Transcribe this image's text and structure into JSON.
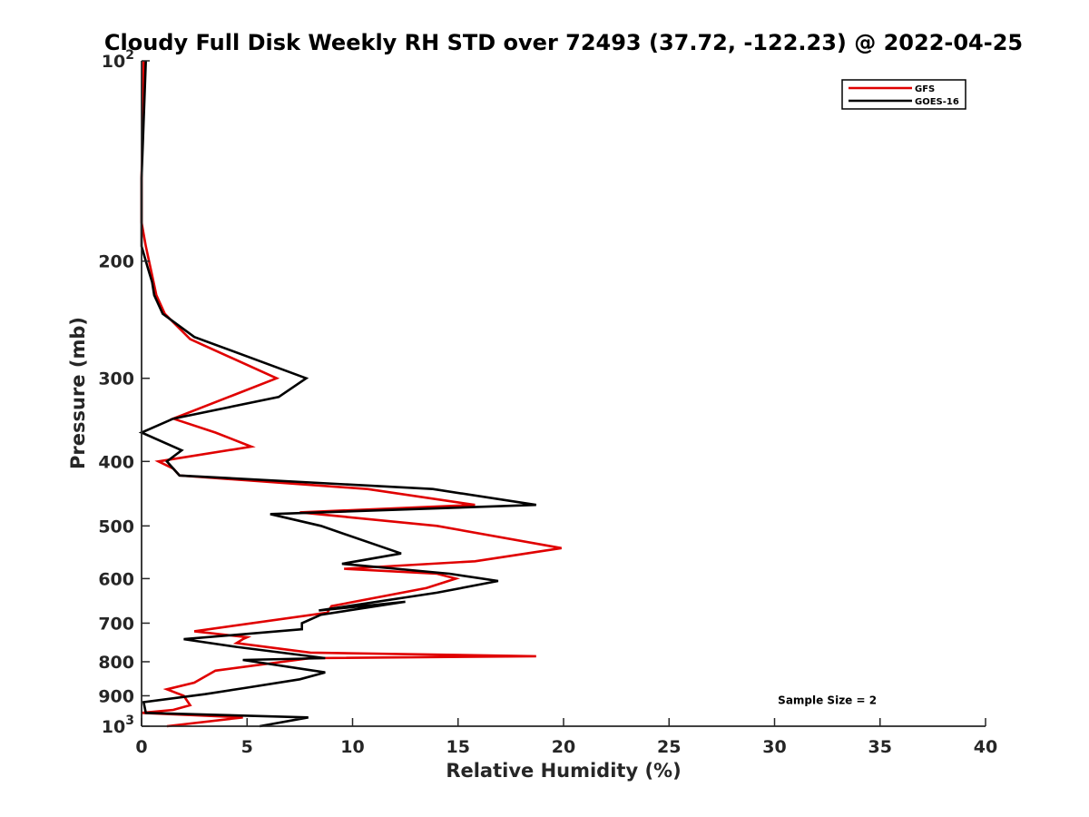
{
  "chart_data": {
    "type": "line",
    "title": "Cloudy Full Disk Weekly RH STD over 72493 (37.72, -122.23) @ 2022-04-25",
    "xlabel": "Relative Humidity (%)",
    "ylabel": "Pressure (mb)",
    "xlim": [
      0,
      40
    ],
    "ylim": [
      100,
      1000
    ],
    "y_scale": "log",
    "y_reversed": true,
    "x_ticks": [
      0,
      5,
      10,
      15,
      20,
      25,
      30,
      35,
      40
    ],
    "y_ticks": [
      100,
      200,
      300,
      400,
      500,
      600,
      700,
      800,
      900,
      1000
    ],
    "y_tick_labels": [
      {
        "base": "10",
        "exp": "2"
      },
      {
        "text": "200"
      },
      {
        "text": "300"
      },
      {
        "text": "400"
      },
      {
        "text": "500"
      },
      {
        "text": "600"
      },
      {
        "text": "700"
      },
      {
        "text": "800"
      },
      {
        "text": "900"
      },
      {
        "base": "10",
        "exp": "3"
      }
    ],
    "legend_position": "top-right",
    "series": [
      {
        "name": "GFS",
        "color": "#e00000",
        "points": [
          [
            0.1,
            100
          ],
          [
            0.0,
            150
          ],
          [
            0.0,
            175
          ],
          [
            0.2,
            190
          ],
          [
            0.5,
            210
          ],
          [
            0.7,
            225
          ],
          [
            1.1,
            240
          ],
          [
            2.3,
            262
          ],
          [
            6.4,
            300
          ],
          [
            1.5,
            345
          ],
          [
            3.5,
            362
          ],
          [
            5.2,
            380
          ],
          [
            0.8,
            400
          ],
          [
            1.5,
            410
          ],
          [
            1.8,
            420
          ],
          [
            10.7,
            440
          ],
          [
            15.8,
            465
          ],
          [
            7.5,
            477
          ],
          [
            14.0,
            500
          ],
          [
            19.9,
            540
          ],
          [
            15.8,
            565
          ],
          [
            9.6,
            580
          ],
          [
            14.0,
            590
          ],
          [
            14.9,
            600
          ],
          [
            13.5,
            620
          ],
          [
            9.0,
            660
          ],
          [
            8.8,
            675
          ],
          [
            2.5,
            720
          ],
          [
            5.0,
            735
          ],
          [
            4.8,
            740
          ],
          [
            4.5,
            750
          ],
          [
            8.0,
            775
          ],
          [
            18.7,
            785
          ],
          [
            8.0,
            790
          ],
          [
            3.5,
            825
          ],
          [
            2.5,
            860
          ],
          [
            1.2,
            880
          ],
          [
            2.0,
            900
          ],
          [
            2.3,
            930
          ],
          [
            1.5,
            945
          ],
          [
            0.0,
            955
          ],
          [
            4.8,
            970
          ],
          [
            1.2,
            1000
          ]
        ]
      },
      {
        "name": "GOES-16",
        "color": "#000000",
        "points": [
          [
            0.2,
            100
          ],
          [
            0.0,
            150
          ],
          [
            0.0,
            190
          ],
          [
            0.3,
            205
          ],
          [
            0.5,
            215
          ],
          [
            0.6,
            225
          ],
          [
            1.0,
            240
          ],
          [
            2.5,
            260
          ],
          [
            7.8,
            300
          ],
          [
            6.5,
            320
          ],
          [
            1.5,
            345
          ],
          [
            0.0,
            362
          ],
          [
            1.9,
            385
          ],
          [
            1.2,
            400
          ],
          [
            1.8,
            420
          ],
          [
            13.8,
            440
          ],
          [
            18.7,
            465
          ],
          [
            6.1,
            480
          ],
          [
            8.5,
            500
          ],
          [
            12.3,
            550
          ],
          [
            9.5,
            570
          ],
          [
            14.6,
            590
          ],
          [
            16.9,
            605
          ],
          [
            14.0,
            630
          ],
          [
            8.4,
            670
          ],
          [
            12.5,
            650
          ],
          [
            8.5,
            680
          ],
          [
            7.6,
            700
          ],
          [
            7.6,
            715
          ],
          [
            2.0,
            740
          ],
          [
            4.5,
            760
          ],
          [
            8.7,
            790
          ],
          [
            4.8,
            795
          ],
          [
            8.7,
            830
          ],
          [
            7.5,
            850
          ],
          [
            5.0,
            875
          ],
          [
            3.0,
            895
          ],
          [
            0.1,
            920
          ],
          [
            0.2,
            955
          ],
          [
            7.9,
            970
          ],
          [
            5.6,
            1000
          ]
        ]
      }
    ],
    "annotations": [
      {
        "text": "Sample Size = 2",
        "x": 32.5,
        "y": 915
      }
    ]
  }
}
